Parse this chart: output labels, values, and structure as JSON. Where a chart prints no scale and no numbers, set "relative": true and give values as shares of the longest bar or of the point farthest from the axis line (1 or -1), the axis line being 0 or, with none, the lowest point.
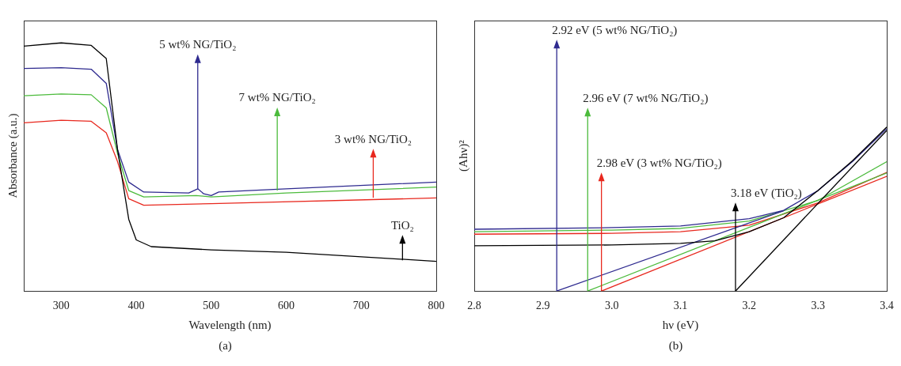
{
  "chart_data": [
    {
      "type": "line",
      "relative": true,
      "xlabel": "Wavelength (nm)",
      "ylabel": "Absorbance (a.u.)",
      "xlim": [
        250,
        800
      ],
      "xticks": [
        300,
        400,
        500,
        600,
        700,
        800
      ],
      "tick_labels": "x",
      "grid": false,
      "legend": false,
      "marker": "none",
      "series": [
        {
          "color": "#000000",
          "x": [
            250,
            300,
            340,
            360,
            375,
            390,
            400,
            420,
            500,
            600,
            800
          ],
          "values": [
            0.987,
            1.0,
            0.99,
            0.937,
            0.571,
            0.289,
            0.206,
            0.179,
            0.166,
            0.156,
            0.12
          ]
        },
        {
          "color": "#2e2a8f",
          "x": [
            250,
            300,
            340,
            360,
            375,
            390,
            410,
            470,
            482,
            490,
            500,
            510,
            600,
            800
          ],
          "values": [
            0.897,
            0.9,
            0.894,
            0.837,
            0.571,
            0.439,
            0.399,
            0.395,
            0.412,
            0.392,
            0.385,
            0.399,
            0.412,
            0.439
          ]
        },
        {
          "color": "#4cbb3c",
          "x": [
            250,
            300,
            340,
            360,
            375,
            390,
            410,
            480,
            500,
            600,
            800
          ],
          "values": [
            0.787,
            0.794,
            0.791,
            0.738,
            0.555,
            0.405,
            0.379,
            0.385,
            0.379,
            0.395,
            0.419
          ]
        },
        {
          "color": "#e8281e",
          "x": [
            250,
            300,
            340,
            360,
            375,
            390,
            410,
            500,
            800
          ],
          "values": [
            0.678,
            0.688,
            0.684,
            0.638,
            0.522,
            0.372,
            0.346,
            0.352,
            0.375
          ]
        }
      ],
      "annotations": [
        {
          "text": "5 wt% NG/TiO₂",
          "x": 482,
          "y": 0.412
        },
        {
          "text": "7 wt% NG/TiO₂",
          "x": 588,
          "y": 0.405
        },
        {
          "text": "3 wt% NG/TiO₂",
          "x": 716,
          "y": 0.376
        },
        {
          "text": "TiO₂",
          "x": 755,
          "y": 0.124
        },
        "(a)"
      ]
    },
    {
      "type": "line",
      "relative": true,
      "xlabel": "hν (eV)",
      "ylabel": "(Ahν)²",
      "xlim": [
        2.8,
        3.4
      ],
      "xticks": [
        {
          "value": 2.8,
          "label": "2.8"
        },
        {
          "value": 2.9,
          "label": "2.9"
        },
        {
          "value": 3.0,
          "label": "3.0"
        },
        {
          "value": 3.1,
          "label": "3.1"
        },
        {
          "value": 3.2,
          "label": "3.2"
        },
        {
          "value": 3.3,
          "label": "3.3"
        },
        {
          "value": 3.4,
          "label": "3.4"
        }
      ],
      "tick_labels": "x",
      "grid": false,
      "legend": false,
      "marker": "none",
      "series": [
        {
          "color": "#000000",
          "x": [
            2.8,
            3.0,
            3.1,
            3.15,
            3.2,
            3.25,
            3.3,
            3.35,
            3.4
          ],
          "values": [
            0.276,
            0.281,
            0.291,
            0.307,
            0.362,
            0.447,
            0.613,
            0.794,
            1.0
          ]
        },
        {
          "color": "#000000",
          "x": [
            3.18,
            3.4
          ],
          "values": [
            0,
            0.98
          ]
        },
        {
          "color": "#2e2a8f",
          "x": [
            2.8,
            3.0,
            3.1,
            3.2,
            3.25,
            3.3,
            3.35,
            3.4
          ],
          "values": [
            0.377,
            0.387,
            0.397,
            0.442,
            0.492,
            0.613,
            0.789,
            0.99
          ]
        },
        {
          "color": "#2e2a8f",
          "x": [
            2.92,
            3.25
          ],
          "values": [
            0,
            0.49
          ]
        },
        {
          "color": "#4cbb3c",
          "x": [
            2.8,
            3.0,
            3.1,
            3.2,
            3.3,
            3.4
          ],
          "values": [
            0.362,
            0.372,
            0.382,
            0.427,
            0.553,
            0.789
          ]
        },
        {
          "color": "#4cbb3c",
          "x": [
            2.965,
            3.4
          ],
          "values": [
            0,
            0.72
          ]
        },
        {
          "color": "#e8281e",
          "x": [
            2.8,
            3.0,
            3.1,
            3.2,
            3.3,
            3.4
          ],
          "values": [
            0.347,
            0.352,
            0.362,
            0.402,
            0.538,
            0.724
          ]
        },
        {
          "color": "#e8281e",
          "x": [
            2.985,
            3.4
          ],
          "values": [
            0,
            0.7
          ]
        }
      ],
      "annotations": [
        {
          "text": "2.92 eV (5 wt% NG/TiO₂)",
          "x": 2.92,
          "y": 0
        },
        {
          "text": "2.96 eV (7 wt% NG/TiO₂)",
          "x": 2.965,
          "y": 0
        },
        {
          "text": "2.98 eV (3 wt% NG/TiO₂)",
          "x": 2.985,
          "y": 0
        },
        {
          "text": "3.18 eV (TiO₂)",
          "x": 3.18,
          "y": 0
        },
        "(b)"
      ]
    }
  ]
}
